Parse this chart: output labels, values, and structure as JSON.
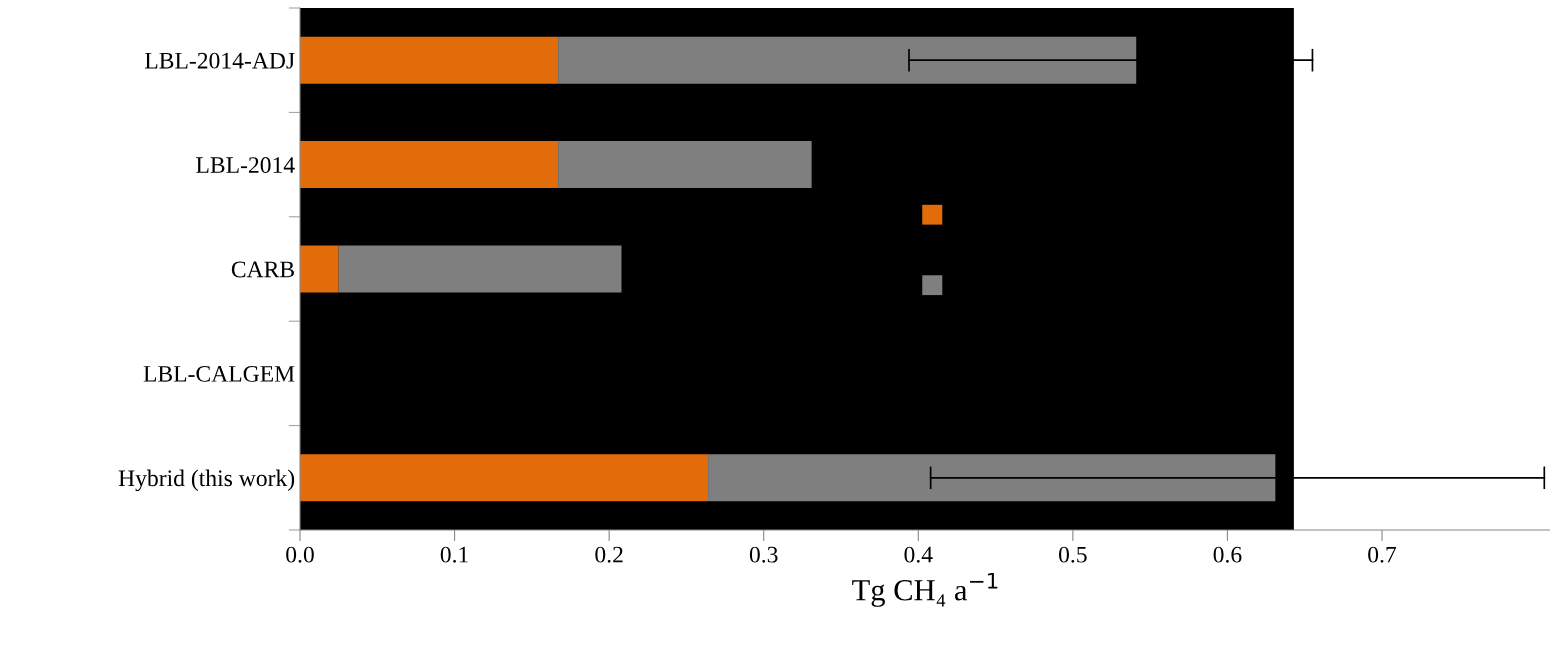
{
  "chart_data": {
    "type": "bar",
    "orientation": "horizontal",
    "stacked": true,
    "categories": [
      "LBL-2014-ADJ",
      "LBL-2014",
      "CARB",
      "LBL-CALGEM",
      "Hybrid (this work)"
    ],
    "series": [
      {
        "color": "#e36c0a",
        "values": [
          0.167,
          0.167,
          0.025,
          null,
          0.264
        ]
      },
      {
        "color": "#7f7f7f",
        "values": [
          0.374,
          0.164,
          0.183,
          null,
          0.367
        ],
        "errors": [
          [
            0.394,
            0.655
          ],
          null,
          null,
          null,
          [
            0.408,
            0.805
          ]
        ]
      }
    ],
    "xlabel": "Tg CH₄ a$^{−1}$",
    "xlim": [
      0,
      0.81
    ],
    "xticks": [
      {
        "value": 0,
        "label": "0.0"
      },
      0.1,
      0.2,
      0.3,
      0.4,
      0.5,
      0.6,
      0.7
    ],
    "bands": [
      {
        "axis": "x",
        "from": 0,
        "to": 0.643,
        "color": "#000000"
      }
    ],
    "grid": false
  }
}
